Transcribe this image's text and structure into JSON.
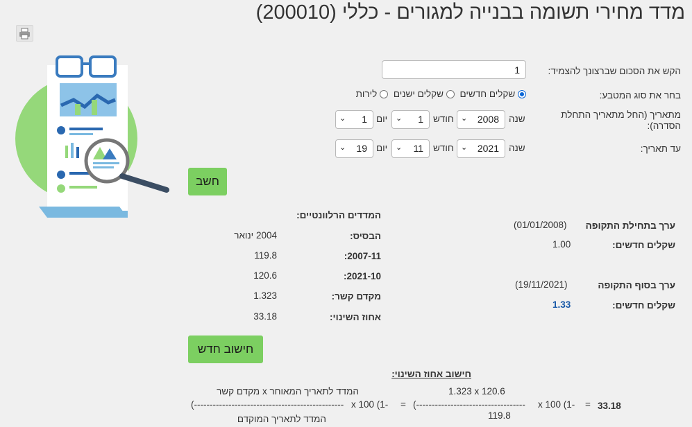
{
  "title": "מדד מחירי תשומה בבנייה למגורים - כללי (200010)",
  "print_icon": "printer-icon",
  "form": {
    "amount_label": "הקש את הסכום שברצונך להצמיד:",
    "amount_value": "1",
    "currency_label": "בחר את סוג המטבע:",
    "currency_options": [
      "שקלים חדשים",
      "שקלים ישנים",
      "לירות"
    ],
    "selected_currency": "שקלים חדשים",
    "from_label": "מתאריך (החל מתאריך התחלת הסדרה):",
    "to_label": "עד תאריך:",
    "year_label": "שנה",
    "month_label": "חודש",
    "day_label": "יום",
    "from_year": "2008",
    "from_month": "1",
    "from_day": "1",
    "to_year": "2021",
    "to_month": "11",
    "to_day": "19",
    "calculate_button": "חשב",
    "new_calc_button": "חישוב חדש"
  },
  "results": {
    "start_heading": "ערך בתחילת התקופה",
    "start_date": "(01/01/2008)",
    "start_label": "שקלים חדשים:",
    "start_value": "1.00",
    "end_heading": "ערך בסוף התקופה",
    "end_date": "(19/11/2021)",
    "end_label": "שקלים חדשים:",
    "end_value": "1.33"
  },
  "indices": {
    "heading": "המדדים הרלוונטיים:",
    "rows": [
      {
        "label": "הבסיס:",
        "value": "2004 ינואר"
      },
      {
        "label": "2007-11:",
        "value": "119.8"
      },
      {
        "label": "2021-10:",
        "value": "120.6"
      },
      {
        "label": "מקדם קשר:",
        "value": "1.323"
      },
      {
        "label": "אחוז השינוי:",
        "value": "33.18"
      }
    ]
  },
  "formula": {
    "heading": "חישוב אחוז השינוי:",
    "result": "33.18",
    "eq1": "=",
    "x100_a": "x 100 (1-",
    "numerator_calc": "1.323 x 120.6",
    "dashes_a": "(-----------------------------------",
    "denominator_calc": "119.8",
    "eq2": "=",
    "x100_b": "x 100 (1-",
    "numerator_text": "המדד לתאריך המאוחר x מקדם קשר",
    "dashes_b": "(------------------------------------------------",
    "denominator_text": "המדד לתאריך המוקדם"
  }
}
